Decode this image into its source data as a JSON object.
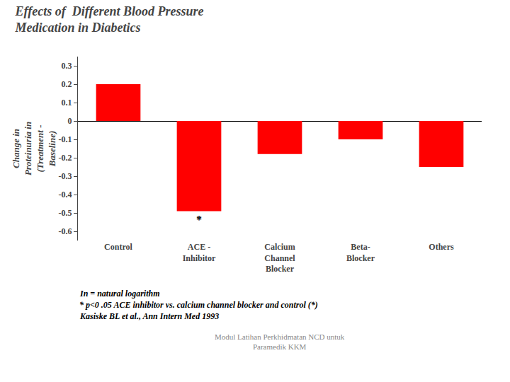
{
  "chart_data": {
    "type": "bar",
    "title": "Effects of  Different Blood Pressure\nMedication in Diabetics",
    "categories": [
      "Control",
      "ACE -\nInhibitor",
      "Calcium\nChannel\nBlocker",
      "Beta-\nBlocker",
      "Others"
    ],
    "values": [
      0.2,
      -0.49,
      -0.18,
      -0.1,
      -0.25
    ],
    "color": "#FF0000",
    "ylabel": "Change in\nProteinuria in\n(Treatment -\nBaseline)",
    "ylim": [
      -0.65,
      0.35
    ],
    "yticks": [
      -0.6,
      -0.5,
      -0.4,
      -0.3,
      -0.2,
      -0.1,
      0,
      0.1,
      0.2,
      0.3
    ],
    "grid": false,
    "annotations": [
      {
        "text": "*",
        "x": "ACE -\nInhibitor"
      },
      {
        "text": "In = natural logarithm"
      },
      {
        "text": "* p<0 .05 ACE inhibitor vs. calcium channel blocker and control (*)"
      },
      {
        "text": "Kasiske BL et al., Ann Intern Med 1993"
      },
      {
        "text": "Modul Latihan Perkhidmatan NCD untuk\nParamedik KKM"
      }
    ]
  }
}
